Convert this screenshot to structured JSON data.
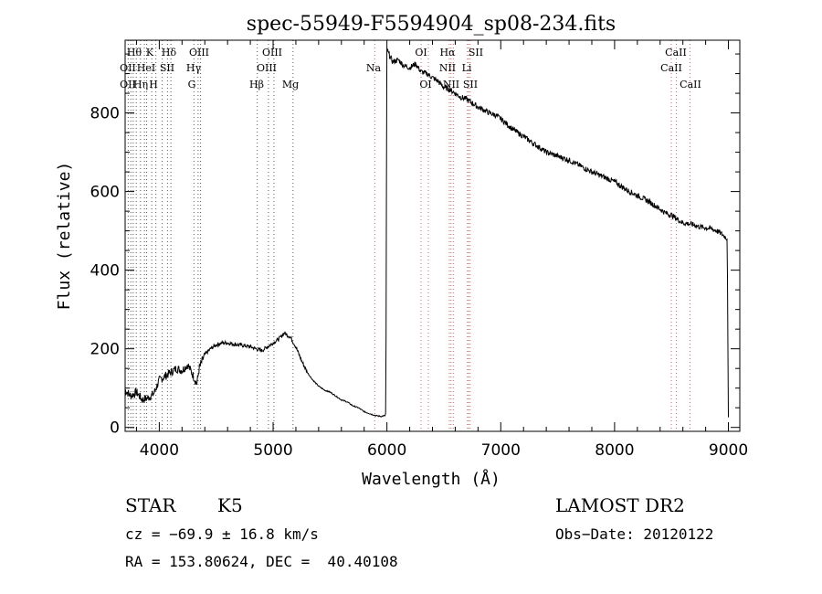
{
  "chart_data": {
    "type": "line",
    "title": "spec-55949-F5594904_sp08-234.fits",
    "xlabel": "Wavelength (Å)",
    "ylabel": "Flux (relative)",
    "xlim": [
      3700,
      9100
    ],
    "ylim": [
      -10,
      985
    ],
    "xticks": [
      4000,
      5000,
      6000,
      7000,
      8000,
      9000
    ],
    "yticks": [
      0,
      200,
      400,
      600,
      800
    ],
    "grid": false,
    "series": [
      {
        "x": [
          3700,
          3750,
          3800,
          3850,
          3900,
          3950,
          4000,
          4050,
          4100,
          4150,
          4200,
          4250,
          4300,
          4330,
          4350,
          4400,
          4450,
          4500,
          4550,
          4600,
          4650,
          4700,
          4750,
          4800,
          4850,
          4900,
          4950,
          5000,
          5050,
          5100,
          5150,
          5200,
          5250,
          5300,
          5350,
          5400,
          5450,
          5500,
          5550,
          5600,
          5650,
          5700,
          5750,
          5800,
          5850,
          5900,
          5950,
          5985,
          5990,
          6000,
          6050,
          6100,
          6150,
          6200,
          6250,
          6300,
          6350,
          6400,
          6450,
          6500,
          6550,
          6600,
          6650,
          6700,
          6750,
          6800,
          6850,
          6900,
          6950,
          7000,
          7100,
          7200,
          7300,
          7400,
          7500,
          7600,
          7700,
          7800,
          7900,
          8000,
          8100,
          8200,
          8300,
          8400,
          8450,
          8500,
          8550,
          8600,
          8650,
          8700,
          8750,
          8800,
          8850,
          8900,
          8950,
          8990,
          9000
        ],
        "y": [
          95,
          80,
          90,
          70,
          75,
          85,
          120,
          130,
          140,
          150,
          145,
          160,
          130,
          110,
          150,
          185,
          200,
          210,
          215,
          215,
          212,
          210,
          208,
          205,
          200,
          195,
          205,
          215,
          225,
          240,
          230,
          205,
          170,
          140,
          120,
          105,
          95,
          90,
          80,
          70,
          65,
          55,
          50,
          40,
          35,
          30,
          28,
          30,
          40,
          960,
          930,
          935,
          920,
          915,
          925,
          905,
          900,
          890,
          880,
          865,
          860,
          850,
          840,
          835,
          825,
          815,
          808,
          800,
          795,
          785,
          760,
          740,
          720,
          700,
          690,
          680,
          665,
          650,
          638,
          625,
          605,
          590,
          575,
          555,
          545,
          540,
          530,
          520,
          518,
          515,
          510,
          508,
          505,
          500,
          490,
          480,
          20
        ]
      }
    ],
    "annotations": {
      "top_row": [
        "Hθ",
        "K",
        "Hδ",
        "OIII",
        "OIII",
        "OI",
        "Hα",
        "SII",
        "CaII"
      ],
      "second_row": [
        "OII",
        "HeI",
        "SII",
        "Hγ",
        "OIII",
        "Na",
        "NII",
        "Li",
        "CaII"
      ],
      "third_row": [
        "OII",
        "Hη",
        "H",
        "G",
        "Hβ",
        "Mg",
        "OI",
        "NII",
        "SII",
        "CaII"
      ]
    }
  },
  "info": {
    "object_class": "STAR",
    "subclass": "K5",
    "survey": "LAMOST DR2",
    "cz": "cz = −69.9 ± 16.8 km/s",
    "obs_date": "Obs−Date: 20120122",
    "coords": "RA = 153.80624, DEC =  40.40108"
  }
}
